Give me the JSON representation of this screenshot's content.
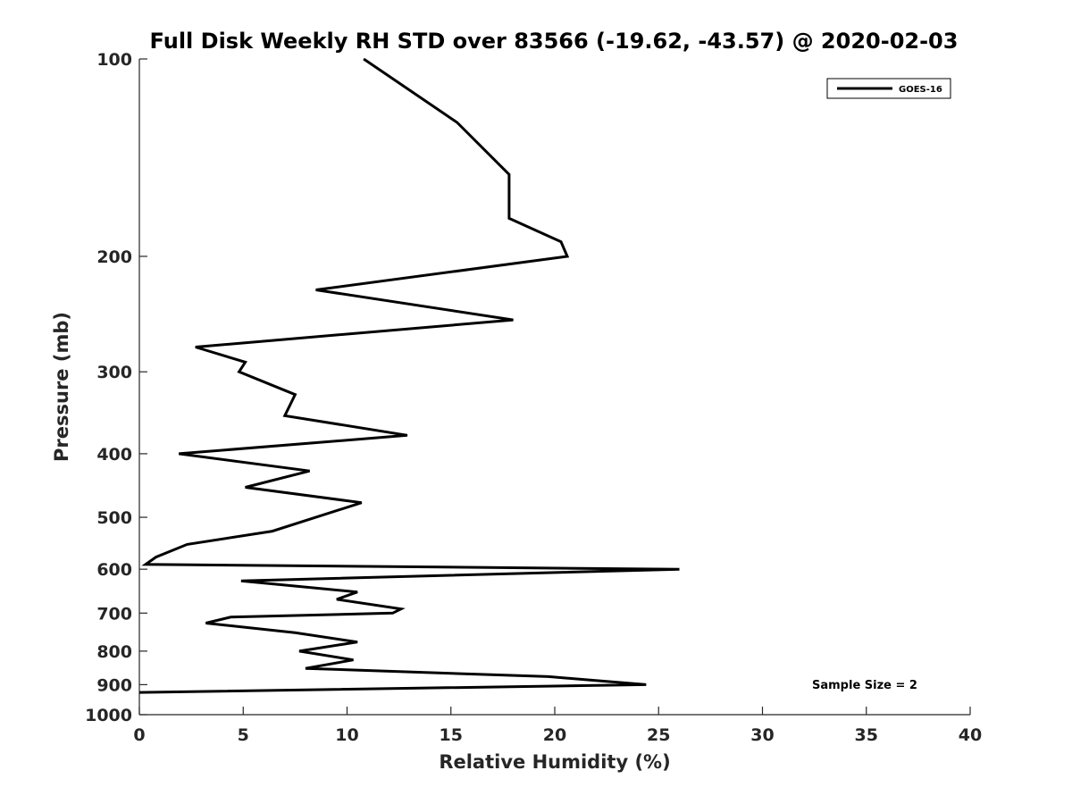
{
  "chart_data": {
    "type": "line",
    "title": "Full Disk Weekly RH STD over 83566 (-19.62, -43.57) @ 2020-02-03",
    "xlabel": "Relative Humidity (%)",
    "ylabel": "Pressure (mb)",
    "xlim": [
      0,
      40
    ],
    "ylim": [
      100,
      1000
    ],
    "yscale": "log",
    "yreversed": true,
    "grid": false,
    "x_ticks": [
      0,
      5,
      10,
      15,
      20,
      25,
      30,
      35,
      40
    ],
    "y_ticks": [
      100,
      200,
      300,
      400,
      500,
      600,
      700,
      800,
      900,
      1000
    ],
    "legend": {
      "placement": "top-right",
      "entries": [
        "GOES-16"
      ]
    },
    "annotation": "Sample Size = 2",
    "series": [
      {
        "name": "GOES-16",
        "color": "#000000",
        "points": [
          {
            "x": 10.8,
            "y": 100
          },
          {
            "x": 15.3,
            "y": 125
          },
          {
            "x": 17.8,
            "y": 150
          },
          {
            "x": 17.8,
            "y": 175
          },
          {
            "x": 20.3,
            "y": 190
          },
          {
            "x": 20.6,
            "y": 200
          },
          {
            "x": 8.5,
            "y": 225
          },
          {
            "x": 18.0,
            "y": 250
          },
          {
            "x": 2.7,
            "y": 275
          },
          {
            "x": 5.1,
            "y": 290
          },
          {
            "x": 4.8,
            "y": 300
          },
          {
            "x": 7.5,
            "y": 325
          },
          {
            "x": 7.0,
            "y": 350
          },
          {
            "x": 12.9,
            "y": 375
          },
          {
            "x": 1.9,
            "y": 400
          },
          {
            "x": 8.2,
            "y": 425
          },
          {
            "x": 5.1,
            "y": 450
          },
          {
            "x": 10.7,
            "y": 475
          },
          {
            "x": 6.4,
            "y": 525
          },
          {
            "x": 2.3,
            "y": 550
          },
          {
            "x": 0.8,
            "y": 575
          },
          {
            "x": 0.3,
            "y": 590
          },
          {
            "x": 26.0,
            "y": 600
          },
          {
            "x": 4.9,
            "y": 625
          },
          {
            "x": 10.5,
            "y": 650
          },
          {
            "x": 9.5,
            "y": 667
          },
          {
            "x": 12.6,
            "y": 690
          },
          {
            "x": 12.2,
            "y": 700
          },
          {
            "x": 4.4,
            "y": 710
          },
          {
            "x": 3.2,
            "y": 725
          },
          {
            "x": 7.5,
            "y": 750
          },
          {
            "x": 10.5,
            "y": 775
          },
          {
            "x": 7.7,
            "y": 800
          },
          {
            "x": 10.3,
            "y": 825
          },
          {
            "x": 8.0,
            "y": 850
          },
          {
            "x": 19.7,
            "y": 875
          },
          {
            "x": 24.4,
            "y": 900
          },
          {
            "x": 0.0,
            "y": 925
          }
        ]
      }
    ]
  }
}
